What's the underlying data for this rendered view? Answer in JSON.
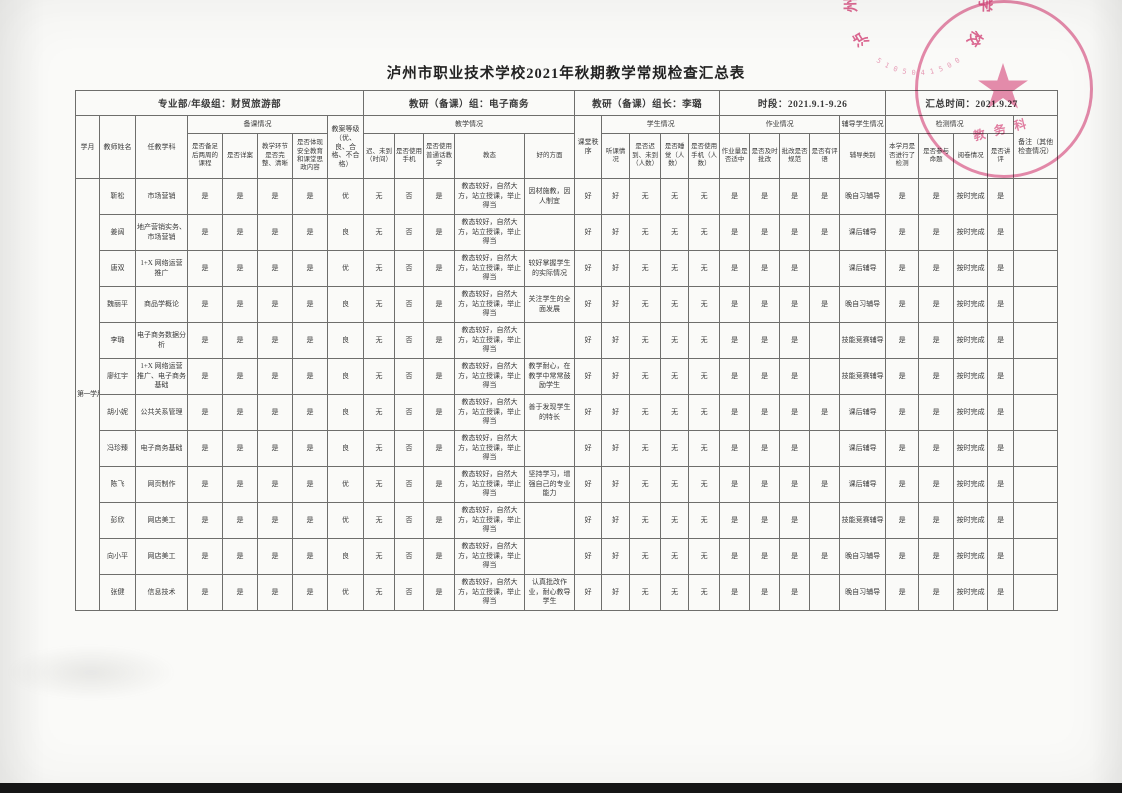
{
  "page": {
    "title": "泸州市职业技术学校2021年秋期教学常规检查汇总表"
  },
  "stamp": {
    "arc_text": "泸州市职业技术学校",
    "sub_text": "教务科",
    "digits": "5105041500",
    "color": "#d8437a"
  },
  "table": {
    "row1": {
      "dept": "专业部/年级组：财贸旅游部",
      "group": "教研（备课）组：电子商务",
      "leader": "教研（备课）组长：李璐",
      "period": "时段：2021.9.1-9.26",
      "summary": "汇总时间：2021.9.27"
    },
    "headers": {
      "month": "学月",
      "teacher": "教师姓名",
      "subject": "任教学科",
      "prep_group": "备课情况",
      "prep_1": "是否备足后两周的课程",
      "prep_2": "是否详案",
      "prep_3": "教学环节是否完整、清晰",
      "prep_4": "是否体现安全教育和课堂思政内容",
      "plan_grade": "教案等级（优、良、合格、不合格）",
      "teach_group": "教学情况",
      "teach_1": "迟、未到（时间）",
      "teach_2": "是否使用手机",
      "teach_3": "是否使用普通话教学",
      "teach_4": "教态",
      "teach_5": "好的方面",
      "order": "课堂秩序",
      "student_group": "学生情况",
      "stu_1": "听课情况",
      "stu_2": "是否迟到、未到（人数）",
      "stu_3": "是否睡觉（人数）",
      "stu_4": "是否使用手机（人数）",
      "hw_group": "作业情况",
      "hw_1": "作业量是否适中",
      "hw_2": "是否及时批改",
      "hw_3": "批改是否规范",
      "hw_4": "是否有评语",
      "tutor_group": "辅导学生情况",
      "tutor_1": "辅导类别",
      "test_group": "检测情况",
      "test_1": "本学月是否进行了检测",
      "test_2": "是否参与命题",
      "test_3": "阅卷情况",
      "test_4": "是否讲评",
      "note": "备注（其他检查情况）"
    },
    "month_label": "第一学月",
    "rows": [
      [
        "靳松",
        "市场营销",
        "是",
        "是",
        "是",
        "是",
        "优",
        "无",
        "否",
        "是",
        "教态较好，自然大方，站立授课，举止得当",
        "因材施教，因人制宜",
        "好",
        "好",
        "无",
        "无",
        "无",
        "是",
        "是",
        "是",
        "是",
        "晚自习辅导",
        "是",
        "是",
        "按时完成",
        "是",
        ""
      ],
      [
        "姜阔",
        "地产营销实务、市场营销",
        "是",
        "是",
        "是",
        "是",
        "良",
        "无",
        "否",
        "是",
        "教态较好，自然大方，站立授课，举止得当",
        "",
        "好",
        "好",
        "无",
        "无",
        "无",
        "是",
        "是",
        "是",
        "是",
        "课后辅导",
        "是",
        "是",
        "按时完成",
        "是",
        ""
      ],
      [
        "唐双",
        "1+X 网络运营推广",
        "是",
        "是",
        "是",
        "是",
        "优",
        "无",
        "否",
        "是",
        "教态较好，自然大方，站立授课，举止得当",
        "较好掌握学生的实际情况",
        "好",
        "好",
        "无",
        "无",
        "无",
        "是",
        "是",
        "是",
        "",
        "课后辅导",
        "是",
        "是",
        "按时完成",
        "是",
        ""
      ],
      [
        "魏丽平",
        "商品学概论",
        "是",
        "是",
        "是",
        "是",
        "良",
        "无",
        "否",
        "是",
        "教态较好，自然大方，站立授课，举止得当",
        "关注学生的全面发展",
        "好",
        "好",
        "无",
        "无",
        "无",
        "是",
        "是",
        "是",
        "是",
        "晚自习辅导",
        "是",
        "是",
        "按时完成",
        "是",
        ""
      ],
      [
        "李璐",
        "电子商务数据分析",
        "是",
        "是",
        "是",
        "是",
        "良",
        "无",
        "否",
        "是",
        "教态较好，自然大方，站立授课，举止得当",
        "",
        "好",
        "好",
        "无",
        "无",
        "无",
        "是",
        "是",
        "是",
        "",
        "技能竞赛辅导",
        "是",
        "是",
        "按时完成",
        "是",
        ""
      ],
      [
        "廖红宇",
        "1+X 网络运营推广、电子商务基础",
        "是",
        "是",
        "是",
        "是",
        "良",
        "无",
        "否",
        "是",
        "教态较好，自然大方，站立授课，举止得当",
        "教学耐心，在教学中常常鼓励学生",
        "好",
        "好",
        "无",
        "无",
        "无",
        "是",
        "是",
        "是",
        "",
        "技能竞赛辅导",
        "是",
        "是",
        "按时完成",
        "是",
        ""
      ],
      [
        "胡小妮",
        "公共关系管理",
        "是",
        "是",
        "是",
        "是",
        "良",
        "无",
        "否",
        "是",
        "教态较好，自然大方，站立授课，举止得当",
        "善于发现学生的特长",
        "好",
        "好",
        "无",
        "无",
        "无",
        "是",
        "是",
        "是",
        "是",
        "课后辅导",
        "是",
        "是",
        "按时完成",
        "是",
        ""
      ],
      [
        "冯珍臻",
        "电子商务基础",
        "是",
        "是",
        "是",
        "是",
        "良",
        "无",
        "否",
        "是",
        "教态较好，自然大方，站立授课，举止得当",
        "",
        "好",
        "好",
        "无",
        "无",
        "无",
        "是",
        "是",
        "是",
        "",
        "课后辅导",
        "是",
        "是",
        "按时完成",
        "是",
        ""
      ],
      [
        "陈飞",
        "网页制作",
        "是",
        "是",
        "是",
        "是",
        "优",
        "无",
        "否",
        "是",
        "教态较好，自然大方，站立授课，举止得当",
        "坚持学习，增强自己的专业能力",
        "好",
        "好",
        "无",
        "无",
        "无",
        "是",
        "是",
        "是",
        "是",
        "课后辅导",
        "是",
        "是",
        "按时完成",
        "是",
        ""
      ],
      [
        "彭欣",
        "网店美工",
        "是",
        "是",
        "是",
        "是",
        "优",
        "无",
        "否",
        "是",
        "教态较好，自然大方，站立授课，举止得当",
        "",
        "好",
        "好",
        "无",
        "无",
        "无",
        "是",
        "是",
        "是",
        "",
        "技能竞赛辅导",
        "是",
        "是",
        "按时完成",
        "是",
        ""
      ],
      [
        "向小平",
        "网店美工",
        "是",
        "是",
        "是",
        "是",
        "良",
        "无",
        "否",
        "是",
        "教态较好，自然大方，站立授课，举止得当",
        "",
        "好",
        "好",
        "无",
        "无",
        "无",
        "是",
        "是",
        "是",
        "是",
        "晚自习辅导",
        "是",
        "是",
        "按时完成",
        "是",
        ""
      ],
      [
        "张健",
        "信息技术",
        "是",
        "是",
        "是",
        "是",
        "优",
        "无",
        "否",
        "是",
        "教态较好，自然大方，站立授课，举止得当",
        "认真批改作业，耐心教导学生",
        "好",
        "好",
        "无",
        "无",
        "无",
        "是",
        "是",
        "是",
        "",
        "晚自习辅导",
        "是",
        "是",
        "按时完成",
        "是",
        ""
      ]
    ]
  }
}
